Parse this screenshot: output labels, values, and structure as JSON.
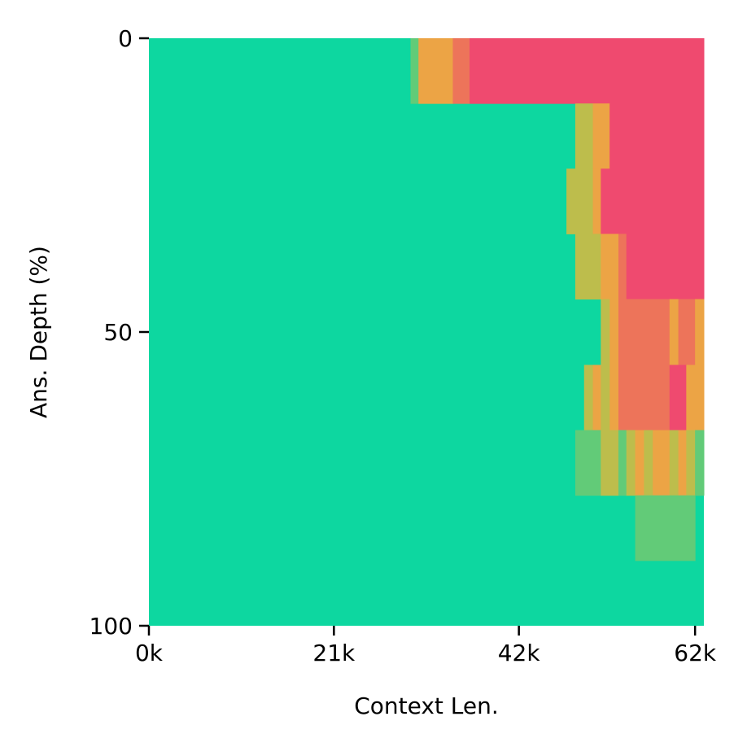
{
  "chart_data": {
    "type": "heatmap",
    "title": "",
    "xlabel": "Context Len.",
    "ylabel": "Ans. Depth (%)",
    "xlim": [
      0,
      63
    ],
    "ylim": [
      0,
      100
    ],
    "x_ticks": [
      {
        "value": 0,
        "label": "0k"
      },
      {
        "value": 21,
        "label": "21k"
      },
      {
        "value": 42,
        "label": "42k"
      },
      {
        "value": 62,
        "label": "62k"
      }
    ],
    "y_ticks": [
      {
        "value": 0,
        "label": "0"
      },
      {
        "value": 50,
        "label": "50"
      },
      {
        "value": 100,
        "label": "100"
      }
    ],
    "background_color": "#0dd7a0",
    "cells": [
      {
        "x0": 29.7,
        "x1": 30.6,
        "y0": 0,
        "y1": 11.1,
        "color": "#62cb78"
      },
      {
        "x0": 30.6,
        "x1": 34.5,
        "y0": 0,
        "y1": 11.1,
        "color": "#eca445"
      },
      {
        "x0": 34.5,
        "x1": 36.4,
        "y0": 0,
        "y1": 11.1,
        "color": "#ed745a"
      },
      {
        "x0": 36.4,
        "x1": 63.0,
        "y0": 0,
        "y1": 11.1,
        "color": "#ef4a6f"
      },
      {
        "x0": 48.4,
        "x1": 50.4,
        "y0": 11.1,
        "y1": 22.2,
        "color": "#bdbd4c"
      },
      {
        "x0": 50.4,
        "x1": 52.3,
        "y0": 11.1,
        "y1": 22.2,
        "color": "#eca445"
      },
      {
        "x0": 52.3,
        "x1": 63.0,
        "y0": 11.1,
        "y1": 22.2,
        "color": "#ef4a6f"
      },
      {
        "x0": 47.4,
        "x1": 50.4,
        "y0": 22.2,
        "y1": 33.3,
        "color": "#bdbd4c"
      },
      {
        "x0": 50.4,
        "x1": 51.3,
        "y0": 22.2,
        "y1": 33.3,
        "color": "#eca445"
      },
      {
        "x0": 51.3,
        "x1": 63.0,
        "y0": 22.2,
        "y1": 33.3,
        "color": "#ef4a6f"
      },
      {
        "x0": 48.4,
        "x1": 51.3,
        "y0": 33.3,
        "y1": 44.4,
        "color": "#bdbd4c"
      },
      {
        "x0": 51.3,
        "x1": 53.3,
        "y0": 33.3,
        "y1": 44.4,
        "color": "#eca445"
      },
      {
        "x0": 53.3,
        "x1": 54.2,
        "y0": 33.3,
        "y1": 44.4,
        "color": "#ed745a"
      },
      {
        "x0": 54.2,
        "x1": 63.0,
        "y0": 33.3,
        "y1": 44.4,
        "color": "#ef4a6f"
      },
      {
        "x0": 51.3,
        "x1": 52.3,
        "y0": 44.4,
        "y1": 55.6,
        "color": "#bdbd4c"
      },
      {
        "x0": 52.3,
        "x1": 53.3,
        "y0": 44.4,
        "y1": 55.6,
        "color": "#eca445"
      },
      {
        "x0": 53.3,
        "x1": 59.1,
        "y0": 44.4,
        "y1": 55.6,
        "color": "#ed745a"
      },
      {
        "x0": 59.1,
        "x1": 60.1,
        "y0": 44.4,
        "y1": 55.6,
        "color": "#eca445"
      },
      {
        "x0": 60.1,
        "x1": 62.0,
        "y0": 44.4,
        "y1": 55.6,
        "color": "#ed745a"
      },
      {
        "x0": 62.0,
        "x1": 63.0,
        "y0": 44.4,
        "y1": 55.6,
        "color": "#eca445"
      },
      {
        "x0": 49.4,
        "x1": 50.4,
        "y0": 55.6,
        "y1": 66.7,
        "color": "#bdbd4c"
      },
      {
        "x0": 50.4,
        "x1": 51.3,
        "y0": 55.6,
        "y1": 66.7,
        "color": "#eca445"
      },
      {
        "x0": 51.3,
        "x1": 52.3,
        "y0": 55.6,
        "y1": 66.7,
        "color": "#bdbd4c"
      },
      {
        "x0": 52.3,
        "x1": 53.3,
        "y0": 55.6,
        "y1": 66.7,
        "color": "#eca445"
      },
      {
        "x0": 53.3,
        "x1": 59.1,
        "y0": 55.6,
        "y1": 66.7,
        "color": "#ed745a"
      },
      {
        "x0": 59.1,
        "x1": 61.0,
        "y0": 55.6,
        "y1": 66.7,
        "color": "#ef4a6f"
      },
      {
        "x0": 61.0,
        "x1": 63.0,
        "y0": 55.6,
        "y1": 66.7,
        "color": "#eca445"
      },
      {
        "x0": 48.4,
        "x1": 51.3,
        "y0": 66.7,
        "y1": 77.8,
        "color": "#62cb78"
      },
      {
        "x0": 51.3,
        "x1": 53.3,
        "y0": 66.7,
        "y1": 77.8,
        "color": "#bdbd4c"
      },
      {
        "x0": 53.3,
        "x1": 54.2,
        "y0": 66.7,
        "y1": 77.8,
        "color": "#62cb78"
      },
      {
        "x0": 54.2,
        "x1": 55.2,
        "y0": 66.7,
        "y1": 77.8,
        "color": "#bdbd4c"
      },
      {
        "x0": 55.2,
        "x1": 56.2,
        "y0": 66.7,
        "y1": 77.8,
        "color": "#eca445"
      },
      {
        "x0": 56.2,
        "x1": 57.2,
        "y0": 66.7,
        "y1": 77.8,
        "color": "#bdbd4c"
      },
      {
        "x0": 57.2,
        "x1": 59.1,
        "y0": 66.7,
        "y1": 77.8,
        "color": "#eca445"
      },
      {
        "x0": 59.1,
        "x1": 60.1,
        "y0": 66.7,
        "y1": 77.8,
        "color": "#bdbd4c"
      },
      {
        "x0": 60.1,
        "x1": 61.0,
        "y0": 66.7,
        "y1": 77.8,
        "color": "#eca445"
      },
      {
        "x0": 61.0,
        "x1": 62.0,
        "y0": 66.7,
        "y1": 77.8,
        "color": "#bdbd4c"
      },
      {
        "x0": 62.0,
        "x1": 63.0,
        "y0": 66.7,
        "y1": 77.8,
        "color": "#62cb78"
      },
      {
        "x0": 55.2,
        "x1": 62.0,
        "y0": 77.8,
        "y1": 88.9,
        "color": "#62cb78"
      }
    ]
  }
}
